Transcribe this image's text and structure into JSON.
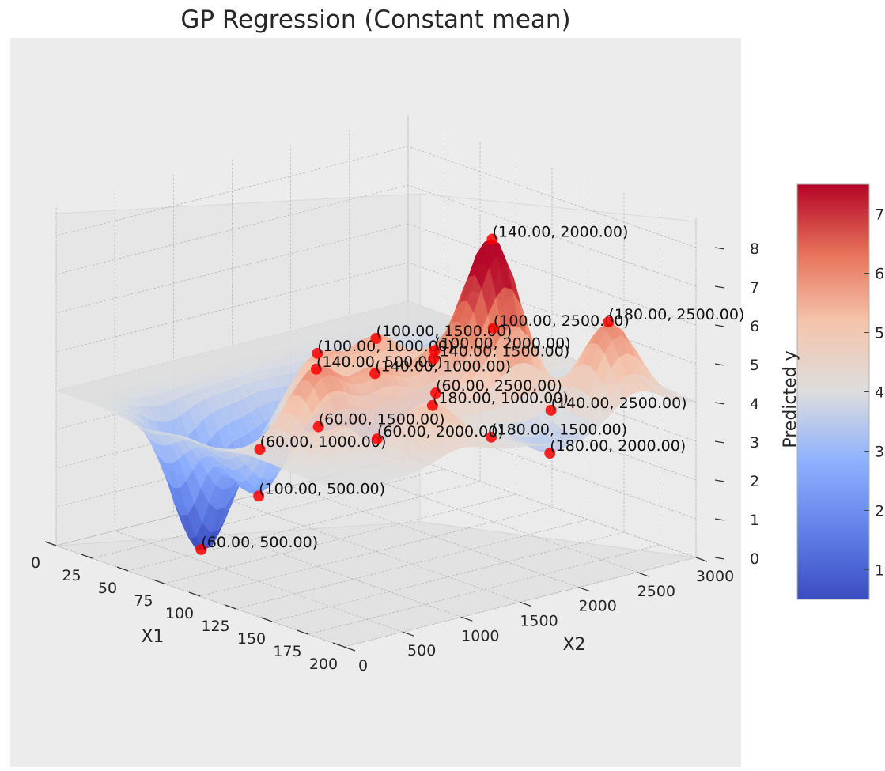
{
  "chart_data": {
    "type": "surface3d",
    "title": "GP Regression (Constant mean)",
    "xlabel": "X1",
    "ylabel": "X2",
    "zlabel": "",
    "colorbar_label": "Predicted y",
    "xlim": [
      0,
      200
    ],
    "ylim": [
      0,
      3000
    ],
    "zlim": [
      0,
      8
    ],
    "xticks": [
      "0",
      "25",
      "50",
      "75",
      "100",
      "125",
      "150",
      "175",
      "200"
    ],
    "yticks": [
      "0",
      "500",
      "1000",
      "1500",
      "2000",
      "2500",
      "3000"
    ],
    "zticks": [
      "0",
      "1",
      "2",
      "3",
      "4",
      "5",
      "6",
      "7",
      "8"
    ],
    "colorbar_ticks": [
      "1",
      "2",
      "3",
      "4",
      "5",
      "6",
      "7"
    ],
    "colorbar_range": [
      0.5,
      7.5
    ],
    "colormap": "coolwarm",
    "colors": {
      "cold": "#3b4cc0",
      "mid": "#dddddd",
      "warm": "#b40426",
      "point": "#ff0000"
    },
    "constant_mean": 4.0,
    "grid": true,
    "points": [
      {
        "label": "(60.00, 500.00)",
        "x1": 60,
        "x2": 500,
        "y": 0.3
      },
      {
        "label": "(100.00, 500.00)",
        "x1": 100,
        "x2": 500,
        "y": 2.2
      },
      {
        "label": "(140.00, 500.00)",
        "x1": 140,
        "x2": 500,
        "y": 6.0
      },
      {
        "label": "(60.00, 1000.00)",
        "x1": 60,
        "x2": 1000,
        "y": 2.5
      },
      {
        "label": "(100.00, 1000.00)",
        "x1": 100,
        "x2": 1000,
        "y": 5.5
      },
      {
        "label": "(140.00, 1000.00)",
        "x1": 140,
        "x2": 1000,
        "y": 5.5
      },
      {
        "label": "(180.00, 1000.00)",
        "x1": 180,
        "x2": 1000,
        "y": 5.2
      },
      {
        "label": "(60.00, 1500.00)",
        "x1": 60,
        "x2": 1500,
        "y": 2.7
      },
      {
        "label": "(100.00, 1500.00)",
        "x1": 100,
        "x2": 1500,
        "y": 5.5
      },
      {
        "label": "(140.00, 1500.00)",
        "x1": 140,
        "x2": 1500,
        "y": 5.5
      },
      {
        "label": "(180.00, 1500.00)",
        "x1": 180,
        "x2": 1500,
        "y": 4.0
      },
      {
        "label": "(60.00, 2000.00)",
        "x1": 60,
        "x2": 2000,
        "y": 2.0
      },
      {
        "label": "(100.00, 2000.00)",
        "x1": 100,
        "x2": 2000,
        "y": 4.8
      },
      {
        "label": "(140.00, 2000.00)",
        "x1": 140,
        "x2": 2000,
        "y": 8.2
      },
      {
        "label": "(180.00, 2000.00)",
        "x1": 180,
        "x2": 2000,
        "y": 3.2
      },
      {
        "label": "(60.00, 2500.00)",
        "x1": 60,
        "x2": 2500,
        "y": 2.8
      },
      {
        "label": "(100.00, 2500.00)",
        "x1": 100,
        "x2": 2500,
        "y": 5.0
      },
      {
        "label": "(140.00, 2500.00)",
        "x1": 140,
        "x2": 2500,
        "y": 3.4
      },
      {
        "label": "(180.00, 2500.00)",
        "x1": 180,
        "x2": 2500,
        "y": 6.2
      }
    ]
  }
}
